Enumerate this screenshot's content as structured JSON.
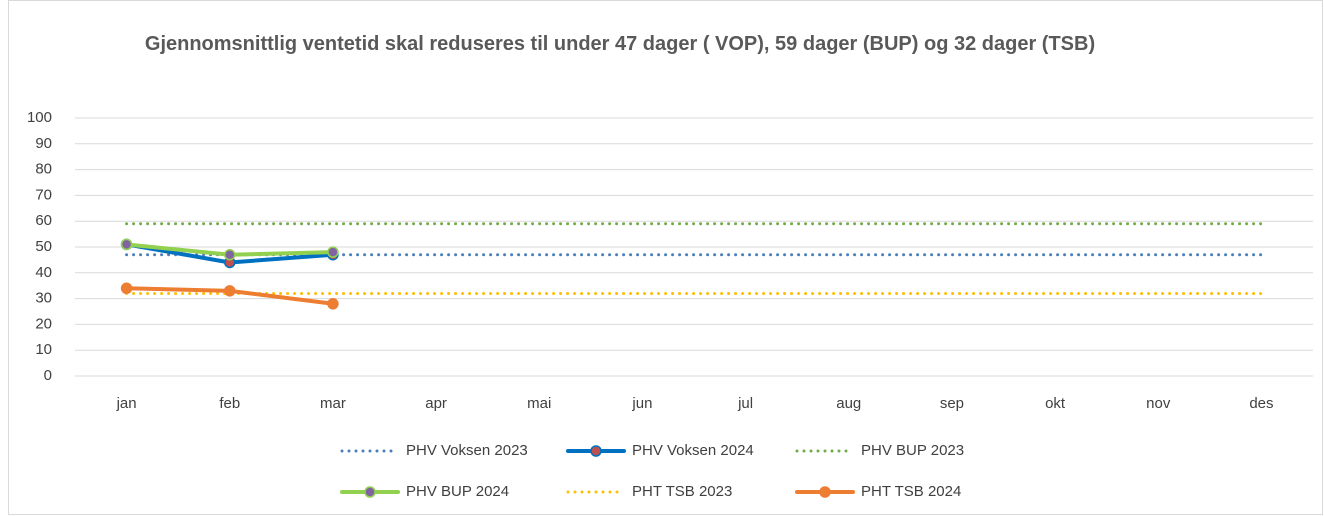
{
  "chart_data": {
    "type": "line",
    "title": "Gjennomsnittlig ventetid skal reduseres til under 47 dager ( VOP), 59 dager (BUP) og 32 dager (TSB)",
    "categories": [
      "jan",
      "feb",
      "mar",
      "apr",
      "mai",
      "jun",
      "jul",
      "aug",
      "sep",
      "okt",
      "nov",
      "des"
    ],
    "series": [
      {
        "name": "PHV Voksen 2023",
        "color": "#4a7ebb",
        "style": "dotted",
        "values": [
          47,
          47,
          47,
          47,
          47,
          47,
          47,
          47,
          47,
          47,
          47,
          47
        ]
      },
      {
        "name": "PHV Voksen 2024",
        "color": "#0070c0",
        "style": "solid",
        "marker_color": "#c0504d",
        "values": [
          51,
          44,
          47,
          null,
          null,
          null,
          null,
          null,
          null,
          null,
          null,
          null
        ]
      },
      {
        "name": "PHV BUP 2023",
        "color": "#70ad47",
        "style": "dotted",
        "values": [
          59,
          59,
          59,
          59,
          59,
          59,
          59,
          59,
          59,
          59,
          59,
          59
        ]
      },
      {
        "name": "PHV BUP 2024",
        "color": "#92d050",
        "style": "solid",
        "marker_color": "#8064a2",
        "values": [
          51,
          47,
          48,
          null,
          null,
          null,
          null,
          null,
          null,
          null,
          null,
          null
        ]
      },
      {
        "name": "PHT TSB 2023",
        "color": "#ffc000",
        "style": "dotted",
        "values": [
          32,
          32,
          32,
          32,
          32,
          32,
          32,
          32,
          32,
          32,
          32,
          32
        ]
      },
      {
        "name": "PHT TSB 2024",
        "color": "#ed7d31",
        "style": "solid",
        "marker_color": "#ed7d31",
        "values": [
          34,
          33,
          28,
          null,
          null,
          null,
          null,
          null,
          null,
          null,
          null,
          null
        ]
      }
    ],
    "ylim": [
      0,
      100
    ],
    "yticks": [
      0,
      10,
      20,
      30,
      40,
      50,
      60,
      70,
      80,
      90,
      100
    ],
    "grid": true,
    "legend": "bottom"
  }
}
